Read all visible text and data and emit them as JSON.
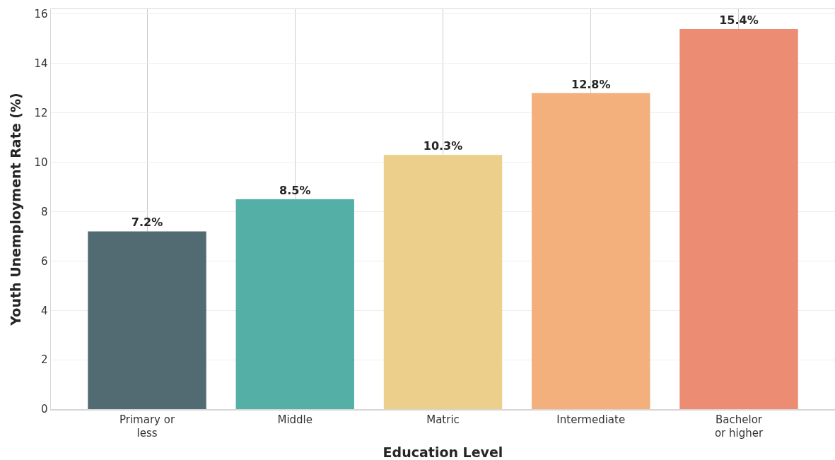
{
  "chart_data": {
    "type": "bar",
    "xlabel": "Education Level",
    "ylabel": "Youth Unemployment Rate (%)",
    "categories": [
      "Primary or\nless",
      "Middle",
      "Matric",
      "Intermediate",
      "Bachelor\nor higher"
    ],
    "values": [
      7.2,
      8.5,
      10.3,
      12.8,
      15.4
    ],
    "colors": [
      "#526a72",
      "#54b0a6",
      "#ebcf8a",
      "#f4b07c",
      "#eb8c73"
    ],
    "value_labels": [
      "7.2%",
      "8.5%",
      "10.3%",
      "12.8%",
      "15.4%"
    ],
    "ylim": [
      0,
      16.2
    ],
    "yticks": [
      0,
      2,
      4,
      6,
      8,
      10,
      12,
      14,
      16
    ],
    "grid": true
  }
}
